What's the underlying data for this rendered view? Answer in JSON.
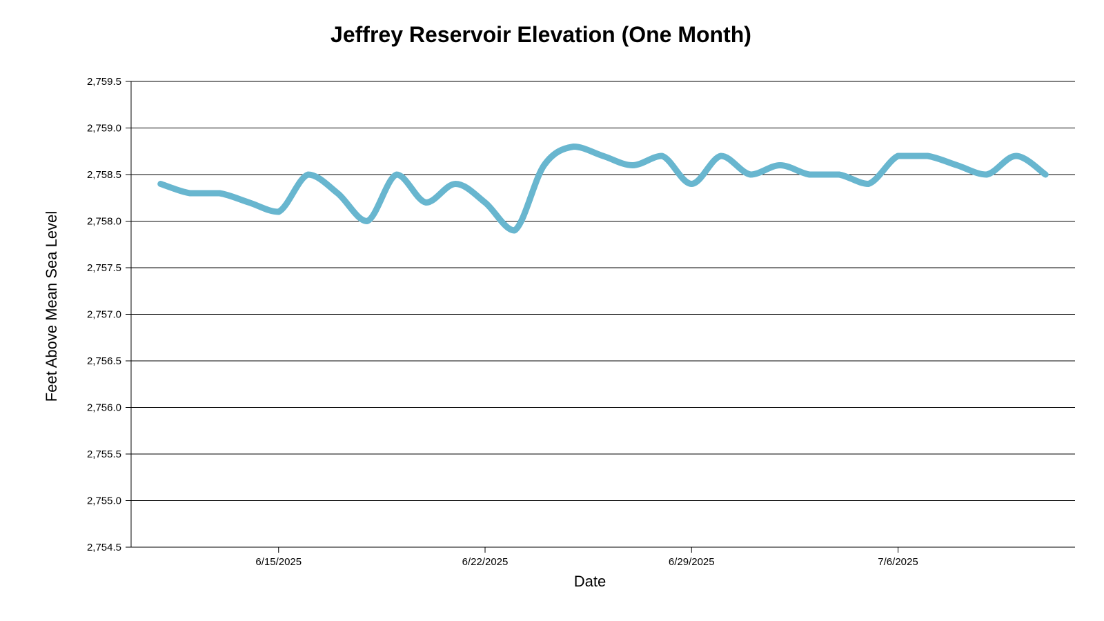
{
  "chart_data": {
    "type": "line",
    "title": "Jeffrey Reservoir Elevation (One Month)",
    "xlabel": "Date",
    "ylabel": "Feet Above Mean Sea Level",
    "ylim": [
      2754.5,
      2759.5
    ],
    "y_ticks": [
      "2,754.5",
      "2,755.0",
      "2,755.5",
      "2,756.0",
      "2,756.5",
      "2,757.0",
      "2,757.5",
      "2,758.0",
      "2,758.5",
      "2,759.0",
      "2,759.5"
    ],
    "y_tick_values": [
      2754.5,
      2755.0,
      2755.5,
      2756.0,
      2756.5,
      2757.0,
      2757.5,
      2758.0,
      2758.5,
      2759.0,
      2759.5
    ],
    "x_ticks": [
      "6/15/2025",
      "6/22/2025",
      "6/29/2025",
      "7/6/2025"
    ],
    "x_range": [
      "2025-06-10",
      "2025-07-12"
    ],
    "grid": true,
    "line_color": "#68b6cf",
    "series": [
      {
        "x": [
          "2025-06-11",
          "2025-06-12",
          "2025-06-13",
          "2025-06-14",
          "2025-06-15",
          "2025-06-16",
          "2025-06-17",
          "2025-06-18",
          "2025-06-19",
          "2025-06-20",
          "2025-06-21",
          "2025-06-22",
          "2025-06-23",
          "2025-06-24",
          "2025-06-25",
          "2025-06-26",
          "2025-06-27",
          "2025-06-28",
          "2025-06-29",
          "2025-06-30",
          "2025-07-01",
          "2025-07-02",
          "2025-07-03",
          "2025-07-04",
          "2025-07-05",
          "2025-07-06",
          "2025-07-07",
          "2025-07-08",
          "2025-07-09",
          "2025-07-10",
          "2025-07-11"
        ],
        "values": [
          2758.4,
          2758.3,
          2758.3,
          2758.2,
          2758.1,
          2758.5,
          2758.3,
          2758.0,
          2758.5,
          2758.2,
          2758.4,
          2758.2,
          2757.9,
          2758.6,
          2758.8,
          2758.7,
          2758.6,
          2758.7,
          2758.4,
          2758.7,
          2758.5,
          2758.6,
          2758.5,
          2758.5,
          2758.4,
          2758.7,
          2758.7,
          2758.6,
          2758.5,
          2758.7,
          2758.5
        ]
      }
    ]
  }
}
